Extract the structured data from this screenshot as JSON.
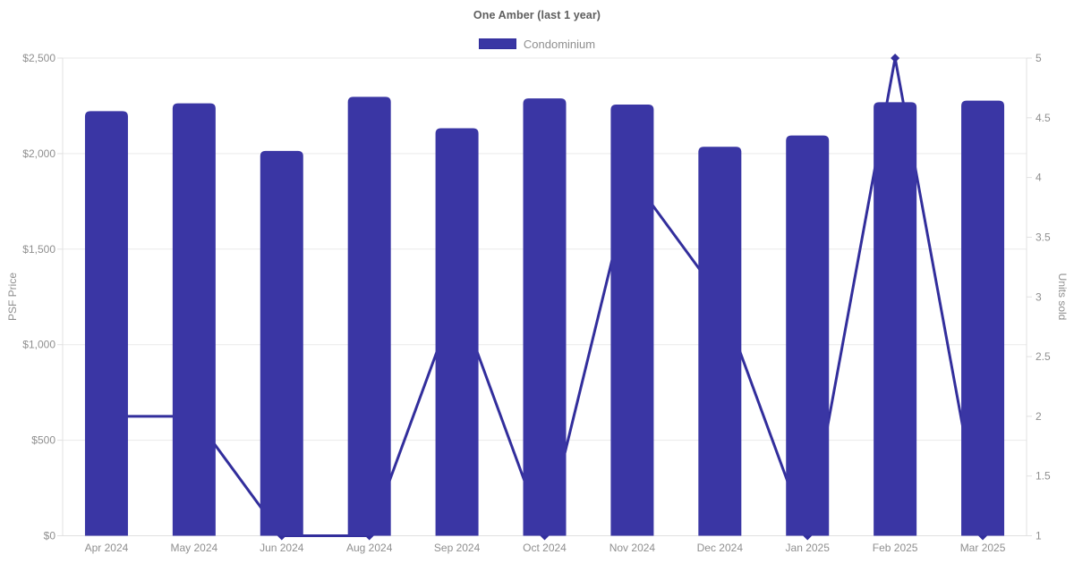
{
  "chart_data": {
    "type": "bar",
    "combo": "bar+line dual axis",
    "title": "One Amber (last 1 year)",
    "legend": {
      "position": "top",
      "items": [
        {
          "label": "Condominium",
          "swatch_color": "#3a36a4",
          "swatch_border": "#322e9c"
        }
      ]
    },
    "categories": [
      "Apr 2024",
      "May 2024",
      "Jun 2024",
      "Aug 2024",
      "Sep 2024",
      "Oct 2024",
      "Nov 2024",
      "Dec 2024",
      "Jan 2025",
      "Feb 2025",
      "Mar 2025"
    ],
    "series": [
      {
        "name": "Condominium",
        "type": "bar",
        "yaxis": "left",
        "color": "#3a36a4",
        "values": [
          2222,
          2263,
          2014,
          2297,
          2133,
          2289,
          2257,
          2036,
          2095,
          2269,
          2277
        ]
      },
      {
        "name": "Units sold",
        "type": "line",
        "yaxis": "right",
        "color": "#322e9c",
        "point_style": "diamond",
        "values": [
          2,
          2,
          1,
          1,
          3,
          1,
          4,
          3,
          1,
          5,
          1
        ]
      }
    ],
    "axes": {
      "left": {
        "label": "PSF Price",
        "min": 0,
        "max": 2500,
        "ticks": [
          {
            "v": 0,
            "t": "$0"
          },
          {
            "v": 500,
            "t": "$500"
          },
          {
            "v": 1000,
            "t": "$1,000"
          },
          {
            "v": 1500,
            "t": "$1,500"
          },
          {
            "v": 2000,
            "t": "$2,000"
          },
          {
            "v": 2500,
            "t": "$2,500"
          }
        ]
      },
      "right": {
        "label": "Units sold",
        "min": 1,
        "max": 5,
        "ticks": [
          {
            "v": 1,
            "t": "1"
          },
          {
            "v": 1.5,
            "t": "1.5"
          },
          {
            "v": 2,
            "t": "2"
          },
          {
            "v": 2.5,
            "t": "2.5"
          },
          {
            "v": 3,
            "t": "3"
          },
          {
            "v": 3.5,
            "t": "3.5"
          },
          {
            "v": 4,
            "t": "4"
          },
          {
            "v": 4.5,
            "t": "4.5"
          },
          {
            "v": 5,
            "t": "5"
          }
        ]
      }
    },
    "grid": {
      "horizontal": true,
      "vertical": false,
      "color": "#eaeaea",
      "border_color": "#e0e0e0",
      "tick_label_color": "#8f8f8f"
    }
  }
}
